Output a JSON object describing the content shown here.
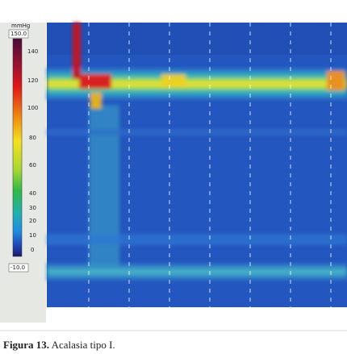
{
  "colorbar": {
    "unit": "mmHg",
    "max": "150.0",
    "ticks": [
      "140",
      "120",
      "100",
      "80",
      "60",
      "40",
      "30",
      "20",
      "10",
      "0"
    ],
    "min": "-10.0"
  },
  "caption": {
    "label": "Figura 13.",
    "text": "Acalasia tipo I."
  }
}
